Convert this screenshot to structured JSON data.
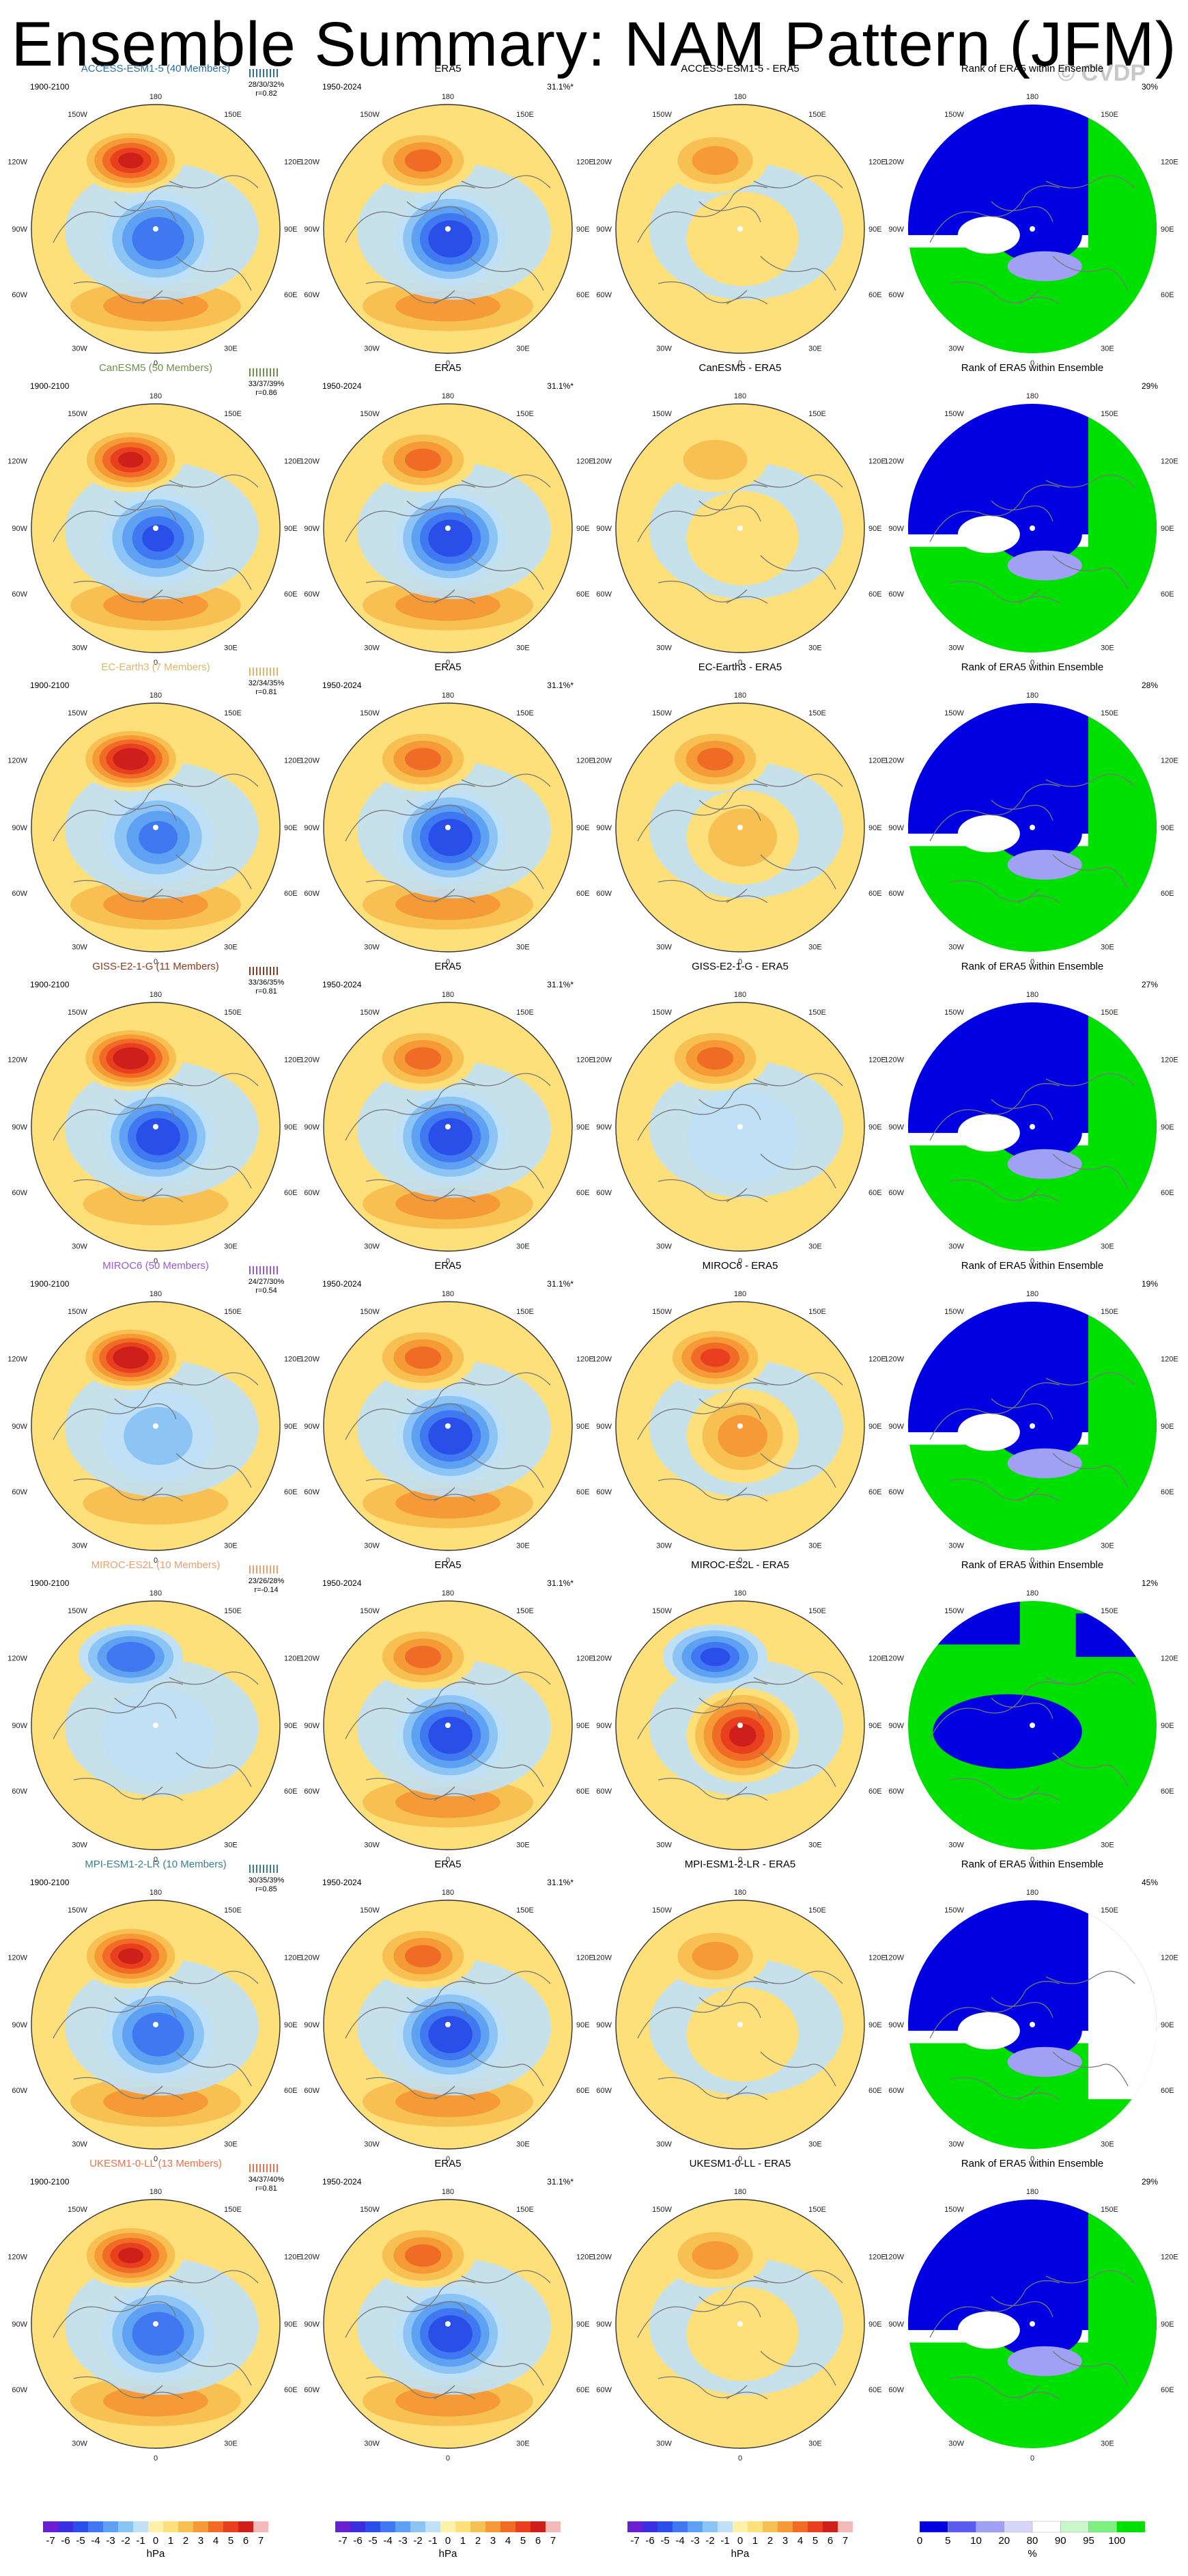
{
  "title": "Ensemble Summary: NAM Pattern (JFM)",
  "copyright": "© CVDP",
  "colors": {
    "model_label": [
      "#2b6f9e",
      "#6f8f4f",
      "#d9b76b",
      "#8b3a1e",
      "#9b59d0",
      "#e8a070",
      "#3a7f8a",
      "#e8724a"
    ],
    "anomaly_scale": [
      "#6a1fd1",
      "#3b2de0",
      "#2a4fe8",
      "#3f78f0",
      "#5ea1f3",
      "#8cc4f6",
      "#c0e1f5",
      "#fff2a8",
      "#fde07a",
      "#f8c052",
      "#f59a36",
      "#f06c26",
      "#e8401f",
      "#cf1f1a",
      "#f4b9b9"
    ],
    "rank_scale": [
      "#0000e0",
      "#5a5af0",
      "#a0a0f5",
      "#d6d6fb",
      "#ffffff",
      "#c9f7c9",
      "#7df07d",
      "#00e000"
    ],
    "land_outline": "#777777"
  },
  "chart_data": {
    "type": "heatmap",
    "projection": "north polar stereographic",
    "column_headers": {
      "era5": "ERA5",
      "difference_suffix": " - ERA5",
      "rank": "Rank of ERA5 within Ensemble"
    },
    "era5_period": "1950-2024",
    "era5_variance": "31.1%*",
    "longitude_labels": {
      "top": "180",
      "upper_left": "150W",
      "upper_right": "150E",
      "left_upper": "120W",
      "right_upper": "120E",
      "left": "90W",
      "right": "90E",
      "left_lower": "60W",
      "right_lower": "60E",
      "lower_left": "30W",
      "lower_right": "30E",
      "bottom": "0"
    },
    "rows": [
      {
        "model": "ACCESS-ESM1-5 (40 Members)",
        "short": "ACCESS-ESM1-5",
        "period": "1900-2100",
        "stats": "28/30/32%",
        "pattern_r": "r=0.82",
        "rank_pct": "30%",
        "pacific_high": 5.5,
        "arctic_low": -4.5,
        "atlantic_high": 2.5,
        "diff_pacific": 3.0,
        "diff_arctic": 1.0,
        "rank_pattern": "low-north-high-south"
      },
      {
        "model": "CanESM5 (50 Members)",
        "short": "CanESM5",
        "period": "1900-2100",
        "stats": "33/37/39%",
        "pattern_r": "r=0.86",
        "rank_pct": "29%",
        "pacific_high": 6.0,
        "arctic_low": -5.0,
        "atlantic_high": 3.0,
        "diff_pacific": 2.0,
        "diff_arctic": 1.0,
        "rank_pattern": "low-north-high-south"
      },
      {
        "model": "EC-Earth3 (7 Members)",
        "short": "EC-Earth3",
        "period": "1900-2100",
        "stats": "32/34/35%",
        "pattern_r": "r=0.81",
        "rank_pct": "28%",
        "pacific_high": 7.0,
        "arctic_low": -4.0,
        "atlantic_high": 3.0,
        "diff_pacific": 4.0,
        "diff_arctic": 1.5,
        "rank_pattern": "low-north-high-south"
      },
      {
        "model": "GISS-E2-1-G (11 Members)",
        "short": "GISS-E2-1-G",
        "period": "1900-2100",
        "stats": "33/36/35%",
        "pattern_r": "r=0.81",
        "rank_pct": "27%",
        "pacific_high": 6.5,
        "arctic_low": -5.5,
        "atlantic_high": 2.0,
        "diff_pacific": 4.0,
        "diff_arctic": -1.5,
        "rank_pattern": "low-north-high-south"
      },
      {
        "model": "MIROC6 (50 Members)",
        "short": "MIROC6",
        "period": "1900-2100",
        "stats": "24/27/30%",
        "pattern_r": "r=0.54",
        "rank_pct": "19%",
        "pacific_high": 6.5,
        "arctic_low": -2.0,
        "atlantic_high": 1.5,
        "diff_pacific": 4.5,
        "diff_arctic": 3.0,
        "rank_pattern": "low-north-high-south"
      },
      {
        "model": "MIROC-ES2L (10 Members)",
        "short": "MIROC-ES2L",
        "period": "1900-2100",
        "stats": "23/26/28%",
        "pattern_r": "r=-0.14",
        "rank_pct": "12%",
        "pacific_high": -4.5,
        "arctic_low": -1.5,
        "atlantic_high": 1.0,
        "diff_pacific": -5.0,
        "diff_arctic": 5.5,
        "rank_pattern": "high-ring-low-center"
      },
      {
        "model": "MPI-ESM1-2-LR (10 Members)",
        "short": "MPI-ESM1-2-LR",
        "period": "1900-2100",
        "stats": "30/35/39%",
        "pattern_r": "r=0.85",
        "rank_pct": "45%",
        "pacific_high": 6.0,
        "arctic_low": -4.5,
        "atlantic_high": 2.5,
        "diff_pacific": 2.5,
        "diff_arctic": 1.0,
        "rank_pattern": "low-north-mixed-south"
      },
      {
        "model": "UKESM1-0-LL (13 Members)",
        "short": "UKESM1-0-LL",
        "period": "1900-2100",
        "stats": "34/37/40%",
        "pattern_r": "r=0.81",
        "rank_pct": "29%",
        "pacific_high": 6.0,
        "arctic_low": -4.5,
        "atlantic_high": 3.0,
        "diff_pacific": 3.0,
        "diff_arctic": 1.0,
        "rank_pattern": "low-north-high-south"
      }
    ],
    "era5_field": {
      "pacific_high": 4.0,
      "arctic_low": -5.5,
      "atlantic_high": 2.5
    },
    "anomaly_colorbar": {
      "ticks": [
        "-7",
        "-6",
        "-5",
        "-4",
        "-3",
        "-2",
        "-1",
        "0",
        "1",
        "2",
        "3",
        "4",
        "5",
        "6",
        "7"
      ],
      "units": "hPa"
    },
    "rank_colorbar": {
      "ticks": [
        "0",
        "5",
        "10",
        "20",
        "80",
        "90",
        "95",
        "100"
      ],
      "units": "%"
    }
  }
}
